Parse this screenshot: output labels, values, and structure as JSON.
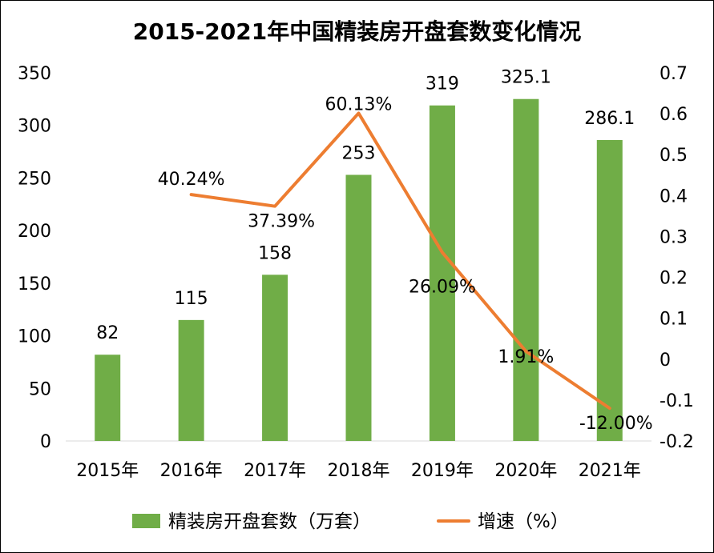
{
  "chart_data": {
    "type": "bar",
    "title": "2015-2021年中国精装房开盘套数变化情况",
    "categories": [
      "2015年",
      "2016年",
      "2017年",
      "2018年",
      "2019年",
      "2020年",
      "2021年"
    ],
    "series": [
      {
        "name": "精装房开盘套数（万套）",
        "type": "bar",
        "axis": "left",
        "color": "#70AD47",
        "values": [
          82,
          115,
          158,
          253,
          319,
          325.1,
          286.1
        ],
        "labels": [
          "82",
          "115",
          "158",
          "253",
          "319",
          "325.1",
          "286.1"
        ]
      },
      {
        "name": "增速（%）",
        "type": "line",
        "axis": "right",
        "color": "#ED7D31",
        "values": [
          null,
          0.4024,
          0.3739,
          0.6013,
          0.2609,
          0.0191,
          -0.12
        ],
        "labels": [
          "",
          "40.24%",
          "37.39%",
          "60.13%",
          "26.09%",
          "1.91%",
          "-12.00%"
        ]
      }
    ],
    "left_axis": {
      "min": 0,
      "max": 350,
      "ticks": [
        "0",
        "50",
        "100",
        "150",
        "200",
        "250",
        "300",
        "350"
      ]
    },
    "right_axis": {
      "min": -0.2,
      "max": 0.7,
      "ticks": [
        "-0.2",
        "-0.1",
        "0",
        "0.1",
        "0.2",
        "0.3",
        "0.4",
        "0.5",
        "0.6",
        "0.7"
      ]
    },
    "grid": false,
    "legend": "bottom"
  }
}
